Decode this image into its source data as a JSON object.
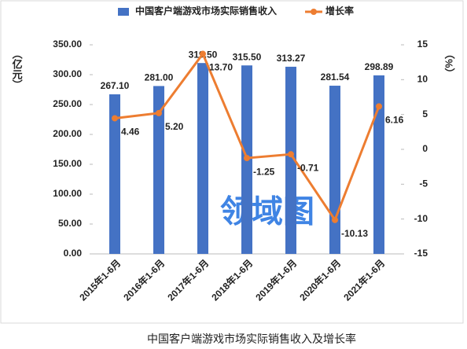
{
  "chart_data": {
    "type": "bar",
    "categories": [
      "2015年1-6月",
      "2016年1-6月",
      "2017年1-6月",
      "2018年1-6月",
      "2019年1-6月",
      "2020年1-6月",
      "2021年1-6月"
    ],
    "series": [
      {
        "name": "中国客户端游戏市场实际销售收入",
        "type": "bar",
        "color": "#4472c4",
        "values": [
          267.1,
          281.0,
          319.5,
          315.5,
          313.27,
          281.54,
          298.89
        ],
        "value_labels": [
          "267.10",
          "281.00",
          "319.50",
          "315.50",
          "313.27",
          "281.54",
          "298.89"
        ]
      },
      {
        "name": "增长率",
        "type": "line",
        "axis": "y2",
        "color": "#ed7d31",
        "values": [
          4.46,
          5.2,
          13.7,
          -1.25,
          -0.71,
          -10.13,
          6.16
        ],
        "value_labels": [
          "4.46",
          "5.20",
          "13.70",
          "-1.25",
          "-0.71",
          "-10.13",
          "6.16"
        ]
      }
    ],
    "y_label": "（亿元）",
    "y2_label": "（%）",
    "ylim": [
      0,
      350
    ],
    "yticks": [
      {
        "value": 0,
        "label": "0.00"
      },
      {
        "value": 50,
        "label": "50.00"
      },
      {
        "value": 100,
        "label": "100.00"
      },
      {
        "value": 150,
        "label": "150.00"
      },
      {
        "value": 200,
        "label": "200.00"
      },
      {
        "value": 250,
        "label": "250.00"
      },
      {
        "value": 300,
        "label": "300.00"
      },
      {
        "value": 350,
        "label": "350.00"
      }
    ],
    "y2lim": [
      -15,
      15
    ],
    "y2ticks": [
      -15,
      -10,
      -5,
      0,
      5,
      10,
      15
    ],
    "grid": false,
    "legend": "top",
    "watermark": "领域图",
    "caption": "中国客户端游戏市场实际销售收入及增长率"
  }
}
